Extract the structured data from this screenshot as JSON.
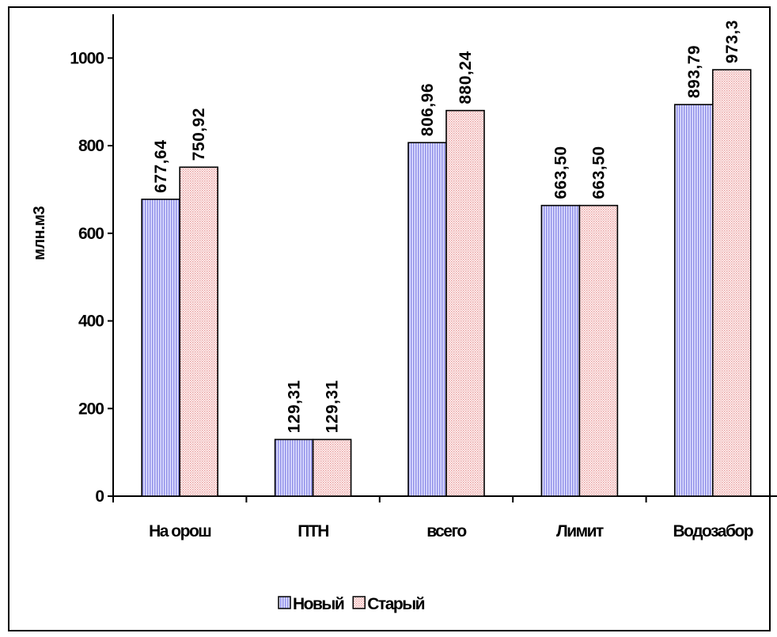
{
  "chart_data": {
    "type": "bar",
    "categories": [
      "На орош",
      "ПТН",
      "всего",
      "Лимит",
      "Водозабор"
    ],
    "series": [
      {
        "name": "Новый",
        "values": [
          677.64,
          129.31,
          806.96,
          663.5,
          893.79
        ],
        "labels": [
          "677,64",
          "129,31",
          "806,96",
          "663,50",
          "893,79"
        ],
        "color": "#b7b7f7"
      },
      {
        "name": "Старый",
        "values": [
          750.92,
          129.31,
          880.24,
          663.5,
          973.3
        ],
        "labels": [
          "750,92",
          "129,31",
          "880,24",
          "663,50",
          "973,3"
        ],
        "color": "#f4c6c6"
      }
    ],
    "xlabel": "",
    "ylabel": "млн.м3",
    "ylim": [
      0,
      1100
    ],
    "yticks": [
      0,
      200,
      400,
      600,
      800,
      1000
    ],
    "grid": false,
    "legend": "bottom"
  }
}
